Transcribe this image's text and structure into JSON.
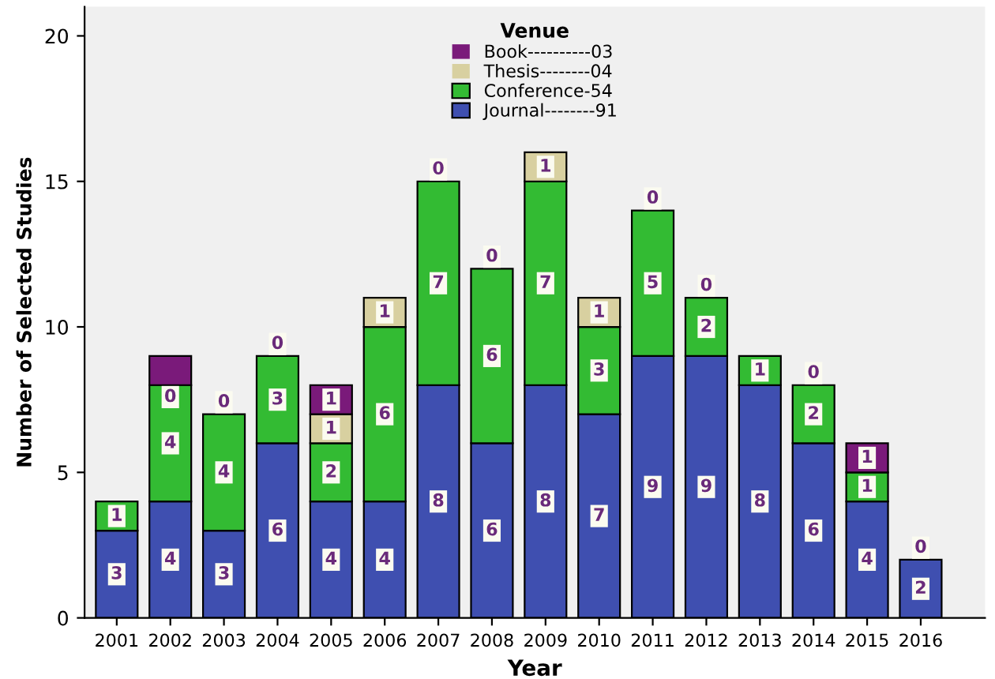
{
  "chart_data": {
    "type": "bar",
    "stacked": true,
    "xlabel": "Year",
    "ylabel": "Number of Selected Studies",
    "legend_title": "Venue",
    "legend": "top",
    "categories": [
      "2001",
      "2002",
      "2003",
      "2004",
      "2005",
      "2006",
      "2007",
      "2008",
      "2009",
      "2010",
      "2011",
      "2012",
      "2013",
      "2014",
      "2015",
      "2016"
    ],
    "series": [
      {
        "name": "Journal--------91",
        "color": "#3f4fb0",
        "values": [
          3,
          4,
          3,
          6,
          4,
          4,
          8,
          6,
          8,
          7,
          9,
          9,
          8,
          6,
          4,
          2
        ],
        "value_labels": [
          "3",
          "4",
          "3",
          "6",
          "4",
          "4",
          "8",
          "6",
          "8",
          "7",
          "9",
          "9",
          "8",
          "6",
          "4",
          "2"
        ]
      },
      {
        "name": "Conference-54",
        "color": "#33bb33",
        "values": [
          1,
          4,
          4,
          3,
          2,
          6,
          7,
          6,
          7,
          3,
          5,
          2,
          1,
          2,
          1,
          0
        ],
        "value_labels": [
          "1",
          "4",
          "4",
          "3",
          "2",
          "6",
          "7",
          "6",
          "7",
          "3",
          "5",
          "2",
          "1",
          "2",
          "1",
          "0"
        ]
      },
      {
        "name": "Thesis--------04",
        "color": "#d8d0a0",
        "values": [
          0,
          0,
          0,
          0,
          1,
          1,
          0,
          0,
          1,
          1,
          0,
          0,
          0,
          0,
          0,
          0
        ],
        "value_labels": [
          null,
          "0",
          "0",
          "0",
          "1",
          "1",
          "0",
          "0",
          "1",
          "1",
          "0",
          "0",
          null,
          "0",
          null,
          null
        ]
      },
      {
        "name": "Book----------03",
        "color": "#7a1a7a",
        "values": [
          0,
          1,
          0,
          0,
          1,
          0,
          0,
          0,
          0,
          0,
          0,
          0,
          0,
          0,
          1,
          0
        ],
        "value_labels": [
          null,
          null,
          null,
          null,
          "1",
          null,
          null,
          null,
          null,
          null,
          null,
          null,
          null,
          null,
          "1",
          null
        ]
      }
    ],
    "ylim": [
      0,
      21
    ],
    "yticks": [
      0,
      5,
      10,
      15,
      20
    ],
    "grid": false
  }
}
